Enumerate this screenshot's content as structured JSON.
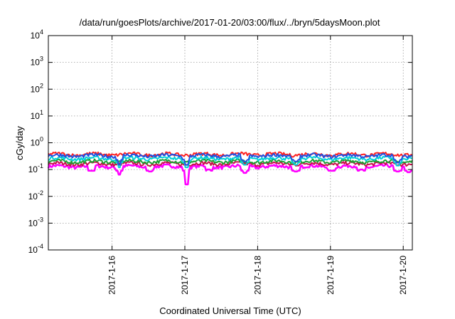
{
  "chart_data": {
    "type": "line",
    "title": "/data/run/goesPlots/archive/2017-01-20/03:00/flux/../bryn/5daysMoon.plot",
    "xlabel": "Coordinated Universal Time (UTC)",
    "ylabel": "cGy/day",
    "y_scale": "log",
    "ylim": [
      0.0001,
      10000
    ],
    "y_ticks": [
      {
        "base": "10",
        "exp": "4"
      },
      {
        "base": "10",
        "exp": "3"
      },
      {
        "base": "10",
        "exp": "2"
      },
      {
        "base": "10",
        "exp": "1"
      },
      {
        "base": "10",
        "exp": "0"
      },
      {
        "base": "10",
        "exp": "-1"
      },
      {
        "base": "10",
        "exp": "-2"
      },
      {
        "base": "10",
        "exp": "-3"
      },
      {
        "base": "10",
        "exp": "-4"
      }
    ],
    "x_range": [
      "2017-01-15 03:00",
      "2017-01-20 03:00"
    ],
    "x_ticks": [
      "2017-1-16",
      "2017-1-17",
      "2017-1-18",
      "2017-1-19",
      "2017-1-20"
    ],
    "grid": true,
    "series": [
      {
        "color": "#ff00ff",
        "level": 0.13,
        "dips": [
          [
            0.98,
            0.065
          ],
          [
            1.9,
            0.028
          ],
          [
            2.7,
            0.075
          ],
          [
            3.4,
            0.085
          ],
          [
            4.8,
            0.085
          ],
          [
            0.6,
            0.09
          ],
          [
            1.4,
            0.085
          ],
          [
            2.2,
            0.1
          ],
          [
            3.9,
            0.09
          ],
          [
            4.3,
            0.1
          ],
          [
            4.95,
            0.08
          ]
        ]
      },
      {
        "color": "#c8104a",
        "level": 0.165,
        "dips": []
      },
      {
        "color": "#1e9e32",
        "level": 0.2,
        "dips": []
      },
      {
        "color": "#00d0d8",
        "level": 0.26,
        "dips": [
          [
            0.98,
            0.12
          ],
          [
            1.9,
            0.12
          ],
          [
            2.7,
            0.15
          ],
          [
            3.4,
            0.15
          ],
          [
            4.8,
            0.14
          ]
        ]
      },
      {
        "color": "#ff2020",
        "level": 0.37,
        "dips": []
      },
      {
        "color": "#2050e0",
        "level": 0.33,
        "dips": [
          [
            0.98,
            0.15
          ],
          [
            1.9,
            0.15
          ],
          [
            2.7,
            0.2
          ],
          [
            3.4,
            0.2
          ],
          [
            4.8,
            0.18
          ]
        ]
      }
    ]
  }
}
